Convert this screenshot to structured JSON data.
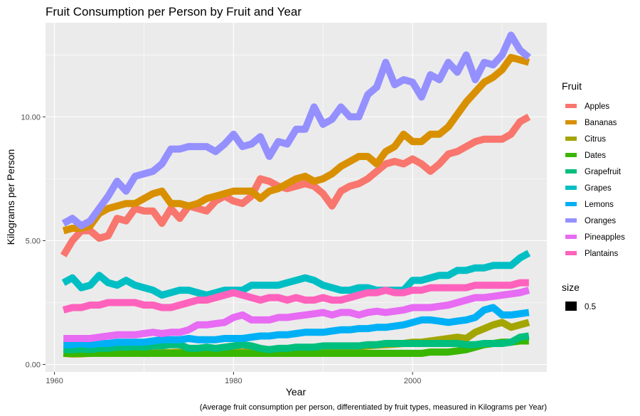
{
  "chart_data": {
    "type": "line",
    "title": "Fruit Consumption per Person by Fruit and Year",
    "xlabel": "Year",
    "ylabel": "Kilograms per Person",
    "caption": "(Average fruit consumption per person, differentiated by fruit types, measured in Kilograms per Year)",
    "xlim": [
      1959,
      2015
    ],
    "ylim": [
      -0.3,
      13.8
    ],
    "x_ticks": [
      1960,
      1980,
      2000
    ],
    "x_tick_labels": [
      "1960",
      "1980",
      "2000"
    ],
    "y_ticks": [
      0,
      5,
      10
    ],
    "y_tick_labels": [
      "0.00",
      "5.00",
      "10.00"
    ],
    "grid": true,
    "legend_position": "right",
    "legend_title": "Fruit",
    "size_legend_title": "size",
    "size_legend_label": "0.5",
    "x": [
      1961,
      1962,
      1963,
      1964,
      1965,
      1966,
      1967,
      1968,
      1969,
      1970,
      1971,
      1972,
      1973,
      1974,
      1975,
      1976,
      1977,
      1978,
      1979,
      1980,
      1981,
      1982,
      1983,
      1984,
      1985,
      1986,
      1987,
      1988,
      1989,
      1990,
      1991,
      1992,
      1993,
      1994,
      1995,
      1996,
      1997,
      1998,
      1999,
      2000,
      2001,
      2002,
      2003,
      2004,
      2005,
      2006,
      2007,
      2008,
      2009,
      2010,
      2011,
      2012,
      2013
    ],
    "series": [
      {
        "name": "Apples",
        "color": "#F8766D",
        "values": [
          4.4,
          5.0,
          5.4,
          5.4,
          5.1,
          5.2,
          5.9,
          5.8,
          6.3,
          6.2,
          6.2,
          5.7,
          6.3,
          5.9,
          6.4,
          6.3,
          6.2,
          6.6,
          6.8,
          6.6,
          6.5,
          6.8,
          7.5,
          7.4,
          7.2,
          7.1,
          7.2,
          7.3,
          7.2,
          6.9,
          6.4,
          7.0,
          7.2,
          7.3,
          7.5,
          7.8,
          8.1,
          8.2,
          8.1,
          8.3,
          8.1,
          7.8,
          8.1,
          8.5,
          8.6,
          8.8,
          9.0,
          9.1,
          9.1,
          9.1,
          9.3,
          9.8,
          10.0
        ]
      },
      {
        "name": "Bananas",
        "color": "#D89000",
        "values": [
          5.4,
          5.5,
          5.5,
          5.6,
          6.1,
          6.3,
          6.4,
          6.5,
          6.5,
          6.7,
          6.9,
          7.0,
          6.5,
          6.5,
          6.4,
          6.5,
          6.7,
          6.8,
          6.9,
          7.0,
          7.0,
          7.0,
          6.7,
          7.0,
          7.1,
          7.3,
          7.5,
          7.6,
          7.4,
          7.5,
          7.7,
          8.0,
          8.2,
          8.4,
          8.4,
          8.1,
          8.6,
          8.8,
          9.3,
          9.0,
          9.0,
          9.3,
          9.3,
          9.6,
          10.1,
          10.6,
          11.0,
          11.4,
          11.6,
          11.9,
          12.4,
          12.3,
          12.2
        ]
      },
      {
        "name": "Citrus",
        "color": "#A3A500",
        "values": [
          0.45,
          0.42,
          0.43,
          0.45,
          0.47,
          0.45,
          0.47,
          0.45,
          0.48,
          0.45,
          0.46,
          0.47,
          0.48,
          0.5,
          0.48,
          0.5,
          0.5,
          0.52,
          0.52,
          0.5,
          0.5,
          0.52,
          0.52,
          0.5,
          0.52,
          0.55,
          0.55,
          0.55,
          0.56,
          0.6,
          0.6,
          0.65,
          0.7,
          0.72,
          0.75,
          0.78,
          0.8,
          0.82,
          0.85,
          0.9,
          0.9,
          0.95,
          1.0,
          1.05,
          1.1,
          1.05,
          1.3,
          1.45,
          1.6,
          1.7,
          1.5,
          1.6,
          1.7
        ]
      },
      {
        "name": "Dates",
        "color": "#39B600",
        "values": [
          0.45,
          0.45,
          0.45,
          0.45,
          0.45,
          0.45,
          0.45,
          0.45,
          0.45,
          0.45,
          0.45,
          0.45,
          0.45,
          0.45,
          0.45,
          0.45,
          0.45,
          0.45,
          0.45,
          0.45,
          0.45,
          0.45,
          0.45,
          0.45,
          0.45,
          0.45,
          0.45,
          0.45,
          0.45,
          0.45,
          0.45,
          0.45,
          0.45,
          0.45,
          0.45,
          0.45,
          0.45,
          0.45,
          0.45,
          0.45,
          0.45,
          0.5,
          0.5,
          0.5,
          0.55,
          0.6,
          0.7,
          0.8,
          0.85,
          0.9,
          0.9,
          0.95,
          0.95
        ]
      },
      {
        "name": "Grapefruit",
        "color": "#00BF7D",
        "values": [
          0.6,
          0.6,
          0.62,
          0.6,
          0.65,
          0.65,
          0.7,
          0.7,
          0.72,
          0.7,
          0.75,
          0.75,
          0.8,
          0.8,
          0.65,
          0.65,
          0.7,
          0.65,
          0.7,
          0.75,
          0.8,
          0.75,
          0.65,
          0.6,
          0.65,
          0.65,
          0.7,
          0.7,
          0.7,
          0.75,
          0.75,
          0.75,
          0.75,
          0.75,
          0.8,
          0.8,
          0.85,
          0.85,
          0.85,
          0.85,
          0.85,
          0.85,
          0.85,
          0.85,
          0.85,
          0.8,
          0.8,
          0.85,
          0.85,
          0.85,
          0.9,
          1.1,
          1.15
        ]
      },
      {
        "name": "Grapes",
        "color": "#00BFC4",
        "values": [
          3.3,
          3.5,
          3.1,
          3.2,
          3.6,
          3.3,
          3.2,
          3.4,
          3.2,
          3.1,
          3.0,
          2.8,
          2.9,
          3.0,
          3.0,
          2.9,
          2.8,
          2.9,
          3.0,
          3.0,
          3.0,
          3.2,
          3.2,
          3.2,
          3.2,
          3.3,
          3.4,
          3.5,
          3.4,
          3.2,
          3.1,
          3.0,
          3.0,
          3.1,
          3.1,
          3.0,
          3.0,
          3.0,
          3.0,
          3.4,
          3.4,
          3.5,
          3.6,
          3.6,
          3.8,
          3.8,
          3.9,
          3.9,
          4.0,
          4.0,
          4.0,
          4.3,
          4.5
        ]
      },
      {
        "name": "Lemons",
        "color": "#00B0F6",
        "values": [
          0.8,
          0.8,
          0.85,
          0.8,
          0.85,
          0.85,
          0.9,
          0.9,
          0.9,
          0.9,
          0.95,
          1.0,
          1.0,
          1.0,
          1.05,
          1.0,
          1.0,
          1.0,
          1.05,
          1.05,
          1.05,
          1.1,
          1.15,
          1.15,
          1.2,
          1.2,
          1.25,
          1.3,
          1.3,
          1.3,
          1.35,
          1.4,
          1.4,
          1.45,
          1.45,
          1.5,
          1.5,
          1.55,
          1.6,
          1.7,
          1.8,
          1.8,
          1.75,
          1.7,
          1.75,
          1.8,
          1.9,
          2.2,
          2.3,
          2.0,
          2.0,
          2.05,
          2.1
        ]
      },
      {
        "name": "Oranges",
        "color": "#9590FF",
        "values": [
          5.7,
          5.9,
          5.6,
          5.8,
          6.3,
          6.8,
          7.4,
          7.0,
          7.6,
          7.7,
          7.8,
          8.1,
          8.7,
          8.7,
          8.8,
          8.8,
          8.8,
          8.6,
          8.9,
          9.3,
          8.8,
          8.9,
          9.2,
          8.4,
          9.0,
          8.9,
          9.5,
          9.5,
          10.4,
          9.7,
          9.9,
          10.4,
          10.0,
          10.0,
          10.9,
          11.2,
          12.2,
          11.3,
          11.5,
          11.4,
          10.8,
          11.7,
          11.5,
          12.2,
          11.8,
          12.5,
          11.5,
          12.2,
          12.1,
          12.5,
          13.3,
          12.7,
          12.4
        ]
      },
      {
        "name": "Pineapples",
        "color": "#E76BF3",
        "values": [
          1.05,
          1.05,
          1.05,
          1.05,
          1.1,
          1.15,
          1.2,
          1.2,
          1.2,
          1.25,
          1.3,
          1.25,
          1.3,
          1.3,
          1.4,
          1.6,
          1.6,
          1.65,
          1.7,
          1.9,
          2.0,
          1.8,
          1.8,
          1.8,
          1.9,
          1.9,
          1.95,
          2.0,
          2.05,
          2.1,
          2.0,
          2.1,
          2.1,
          2.0,
          2.1,
          2.15,
          2.1,
          2.15,
          2.2,
          2.3,
          2.3,
          2.3,
          2.35,
          2.4,
          2.5,
          2.6,
          2.7,
          2.7,
          2.75,
          2.8,
          2.85,
          2.9,
          3.0
        ]
      },
      {
        "name": "Plantains",
        "color": "#FF62BC",
        "values": [
          2.2,
          2.3,
          2.3,
          2.4,
          2.4,
          2.5,
          2.5,
          2.5,
          2.5,
          2.4,
          2.4,
          2.3,
          2.3,
          2.4,
          2.5,
          2.6,
          2.6,
          2.7,
          2.8,
          2.9,
          2.8,
          2.7,
          2.6,
          2.7,
          2.7,
          2.6,
          2.7,
          2.6,
          2.6,
          2.7,
          2.6,
          2.6,
          2.7,
          2.8,
          2.9,
          2.9,
          3.0,
          2.9,
          2.9,
          3.0,
          3.0,
          3.1,
          3.1,
          3.1,
          3.1,
          3.1,
          3.2,
          3.2,
          3.2,
          3.2,
          3.2,
          3.3,
          3.3
        ]
      }
    ]
  }
}
